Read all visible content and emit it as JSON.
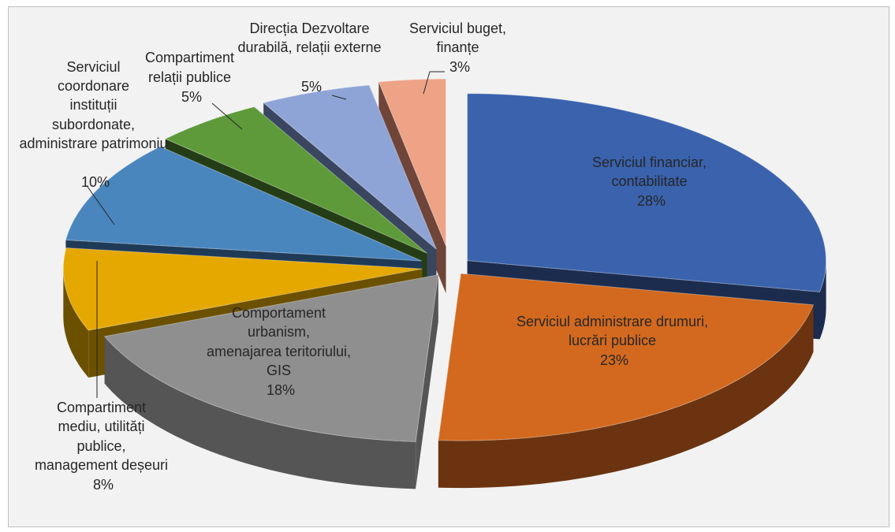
{
  "chart_data": {
    "type": "pie",
    "title": "",
    "slices": [
      {
        "label": "Serviciul financiar, contabilitate",
        "value": 28,
        "value_label": "28%",
        "color": "#3a62ad",
        "side_color": "#1b2c4f"
      },
      {
        "label": "Serviciul administrare drumuri, lucrări publice",
        "value": 23,
        "value_label": "23%",
        "color": "#d2691e",
        "side_color": "#6b3310"
      },
      {
        "label": "Comportament urbanism, amenajarea teritoriului, GIS",
        "value": 18,
        "value_label": "18%",
        "color": "#8f8f8f",
        "side_color": "#555555"
      },
      {
        "label": "Compartiment mediu, utilități publice, management deșeuri",
        "value": 8,
        "value_label": "8%",
        "color": "#e5a800",
        "side_color": "#6b5000"
      },
      {
        "label": "Serviciul coordonare instituții subordonate, administrare patrimoniu",
        "value": 10,
        "value_label": "10%",
        "color": "#4a86be",
        "side_color": "#1e3a57"
      },
      {
        "label": "Compartiment relații publice",
        "value": 5,
        "value_label": "5%",
        "color": "#5e9a3a",
        "side_color": "#253d16"
      },
      {
        "label": "Direcția Dezvoltare durabilă, relații externe",
        "value": 5,
        "value_label": "5%",
        "color": "#8fa4d6",
        "side_color": "#3a4660"
      },
      {
        "label": "Serviciul buget, finanțe",
        "value": 3,
        "value_label": "3%",
        "color": "#eea386",
        "side_color": "#6e4538"
      }
    ]
  }
}
